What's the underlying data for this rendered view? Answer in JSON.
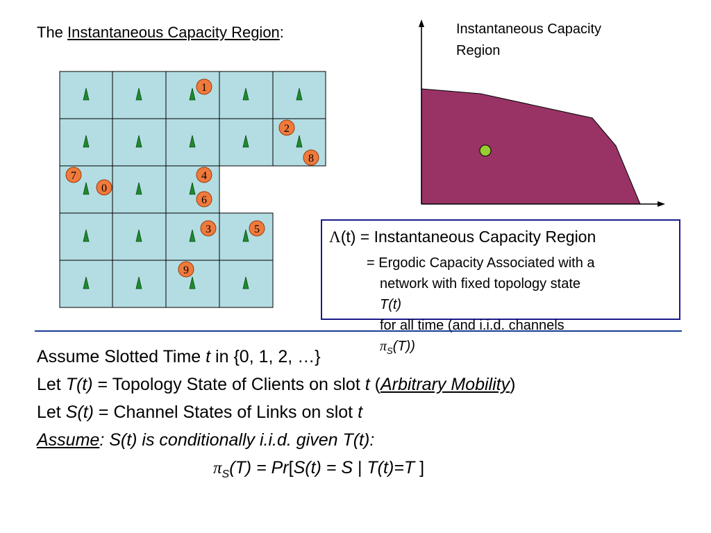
{
  "title": {
    "prefix": "The ",
    "underlined": "Instantaneous Capacity Region",
    "suffix": ":"
  },
  "region_plot": {
    "axis_label_line1": "Instantaneous Capacity",
    "axis_label_line2": "Region",
    "region_color": "#993366",
    "point_color": "#99cc33"
  },
  "grid": {
    "cell_color": "#b3dde3",
    "nodes": [
      "1",
      "2",
      "8",
      "7",
      "0",
      "4",
      "6",
      "3",
      "5",
      "9"
    ]
  },
  "infobox": {
    "line1_lambda": "Λ",
    "line1_rest": "(t) = Instantaneous Capacity Region",
    "line2": "= Ergodic Capacity Associated with a",
    "line3_text": "network with fixed topology state ",
    "line3_italic": "T(t)",
    "line4_text": "for all time (and i.i.d. channels ",
    "line4_pi": "π",
    "line4_sub": "S",
    "line4_end": "(T))"
  },
  "body": {
    "line1_a": "Assume Slotted Time ",
    "line1_t": "t",
    "line1_b": " in {0, 1, 2, …}",
    "line2_a": "Let ",
    "line2_tt": "T(t)",
    "line2_b": " = Topology State of Clients on slot ",
    "line2_t": "t",
    "line2_c": "  (",
    "line2_mob": "Arbitrary Mobility",
    "line2_d": ")",
    "line3_a": "Let ",
    "line3_st": "S(t)",
    "line3_b": " = Channel States of Links on slot ",
    "line3_t": "t",
    "line4_assume": "Assume",
    "line4_rest": ": S(t) is conditionally i.i.d. given T(t):",
    "f_pi": "π",
    "f_sub": "S",
    "f_a": "(T) = Pr",
    "f_b": "[",
    "f_c": "S(t) = S",
    "f_d": " | ",
    "f_e": "T(t)=T",
    "f_f": " ]"
  }
}
